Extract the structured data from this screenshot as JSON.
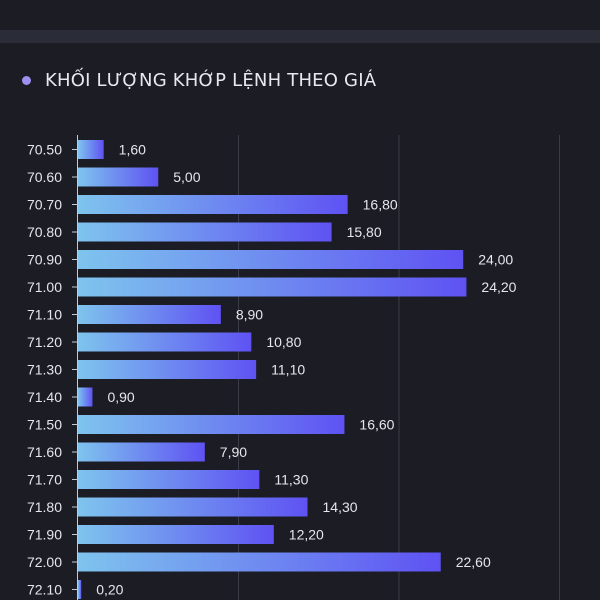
{
  "header": {
    "title": "KHỐI LƯỢNG KHỚP LỆNH THEO GIÁ",
    "dot_color": "#9e8ff0"
  },
  "chart_data": {
    "type": "bar",
    "orientation": "horizontal",
    "title": "KHỐI LƯỢNG KHỚP LỆNH THEO GIÁ",
    "categories": [
      "70.50",
      "70.60",
      "70.70",
      "70.80",
      "70.90",
      "71.00",
      "71.10",
      "71.20",
      "71.30",
      "71.40",
      "71.50",
      "71.60",
      "71.70",
      "71.80",
      "71.90",
      "72.00",
      "72.10"
    ],
    "values": [
      1.6,
      5.0,
      16.8,
      15.8,
      24.0,
      24.2,
      8.9,
      10.8,
      11.1,
      0.9,
      16.6,
      7.9,
      11.3,
      14.3,
      12.2,
      22.6,
      0.2
    ],
    "value_labels": [
      "1,60",
      "5,00",
      "16,80",
      "15,80",
      "24,00",
      "24,20",
      "8,90",
      "10,80",
      "11,10",
      "0,90",
      "16,60",
      "7,90",
      "11,30",
      "14,30",
      "12,20",
      "22,60",
      "0,20"
    ],
    "xlim": [
      0,
      30
    ],
    "grid": true,
    "gradient": [
      "#7ec4ee",
      "#5f52f3"
    ]
  }
}
